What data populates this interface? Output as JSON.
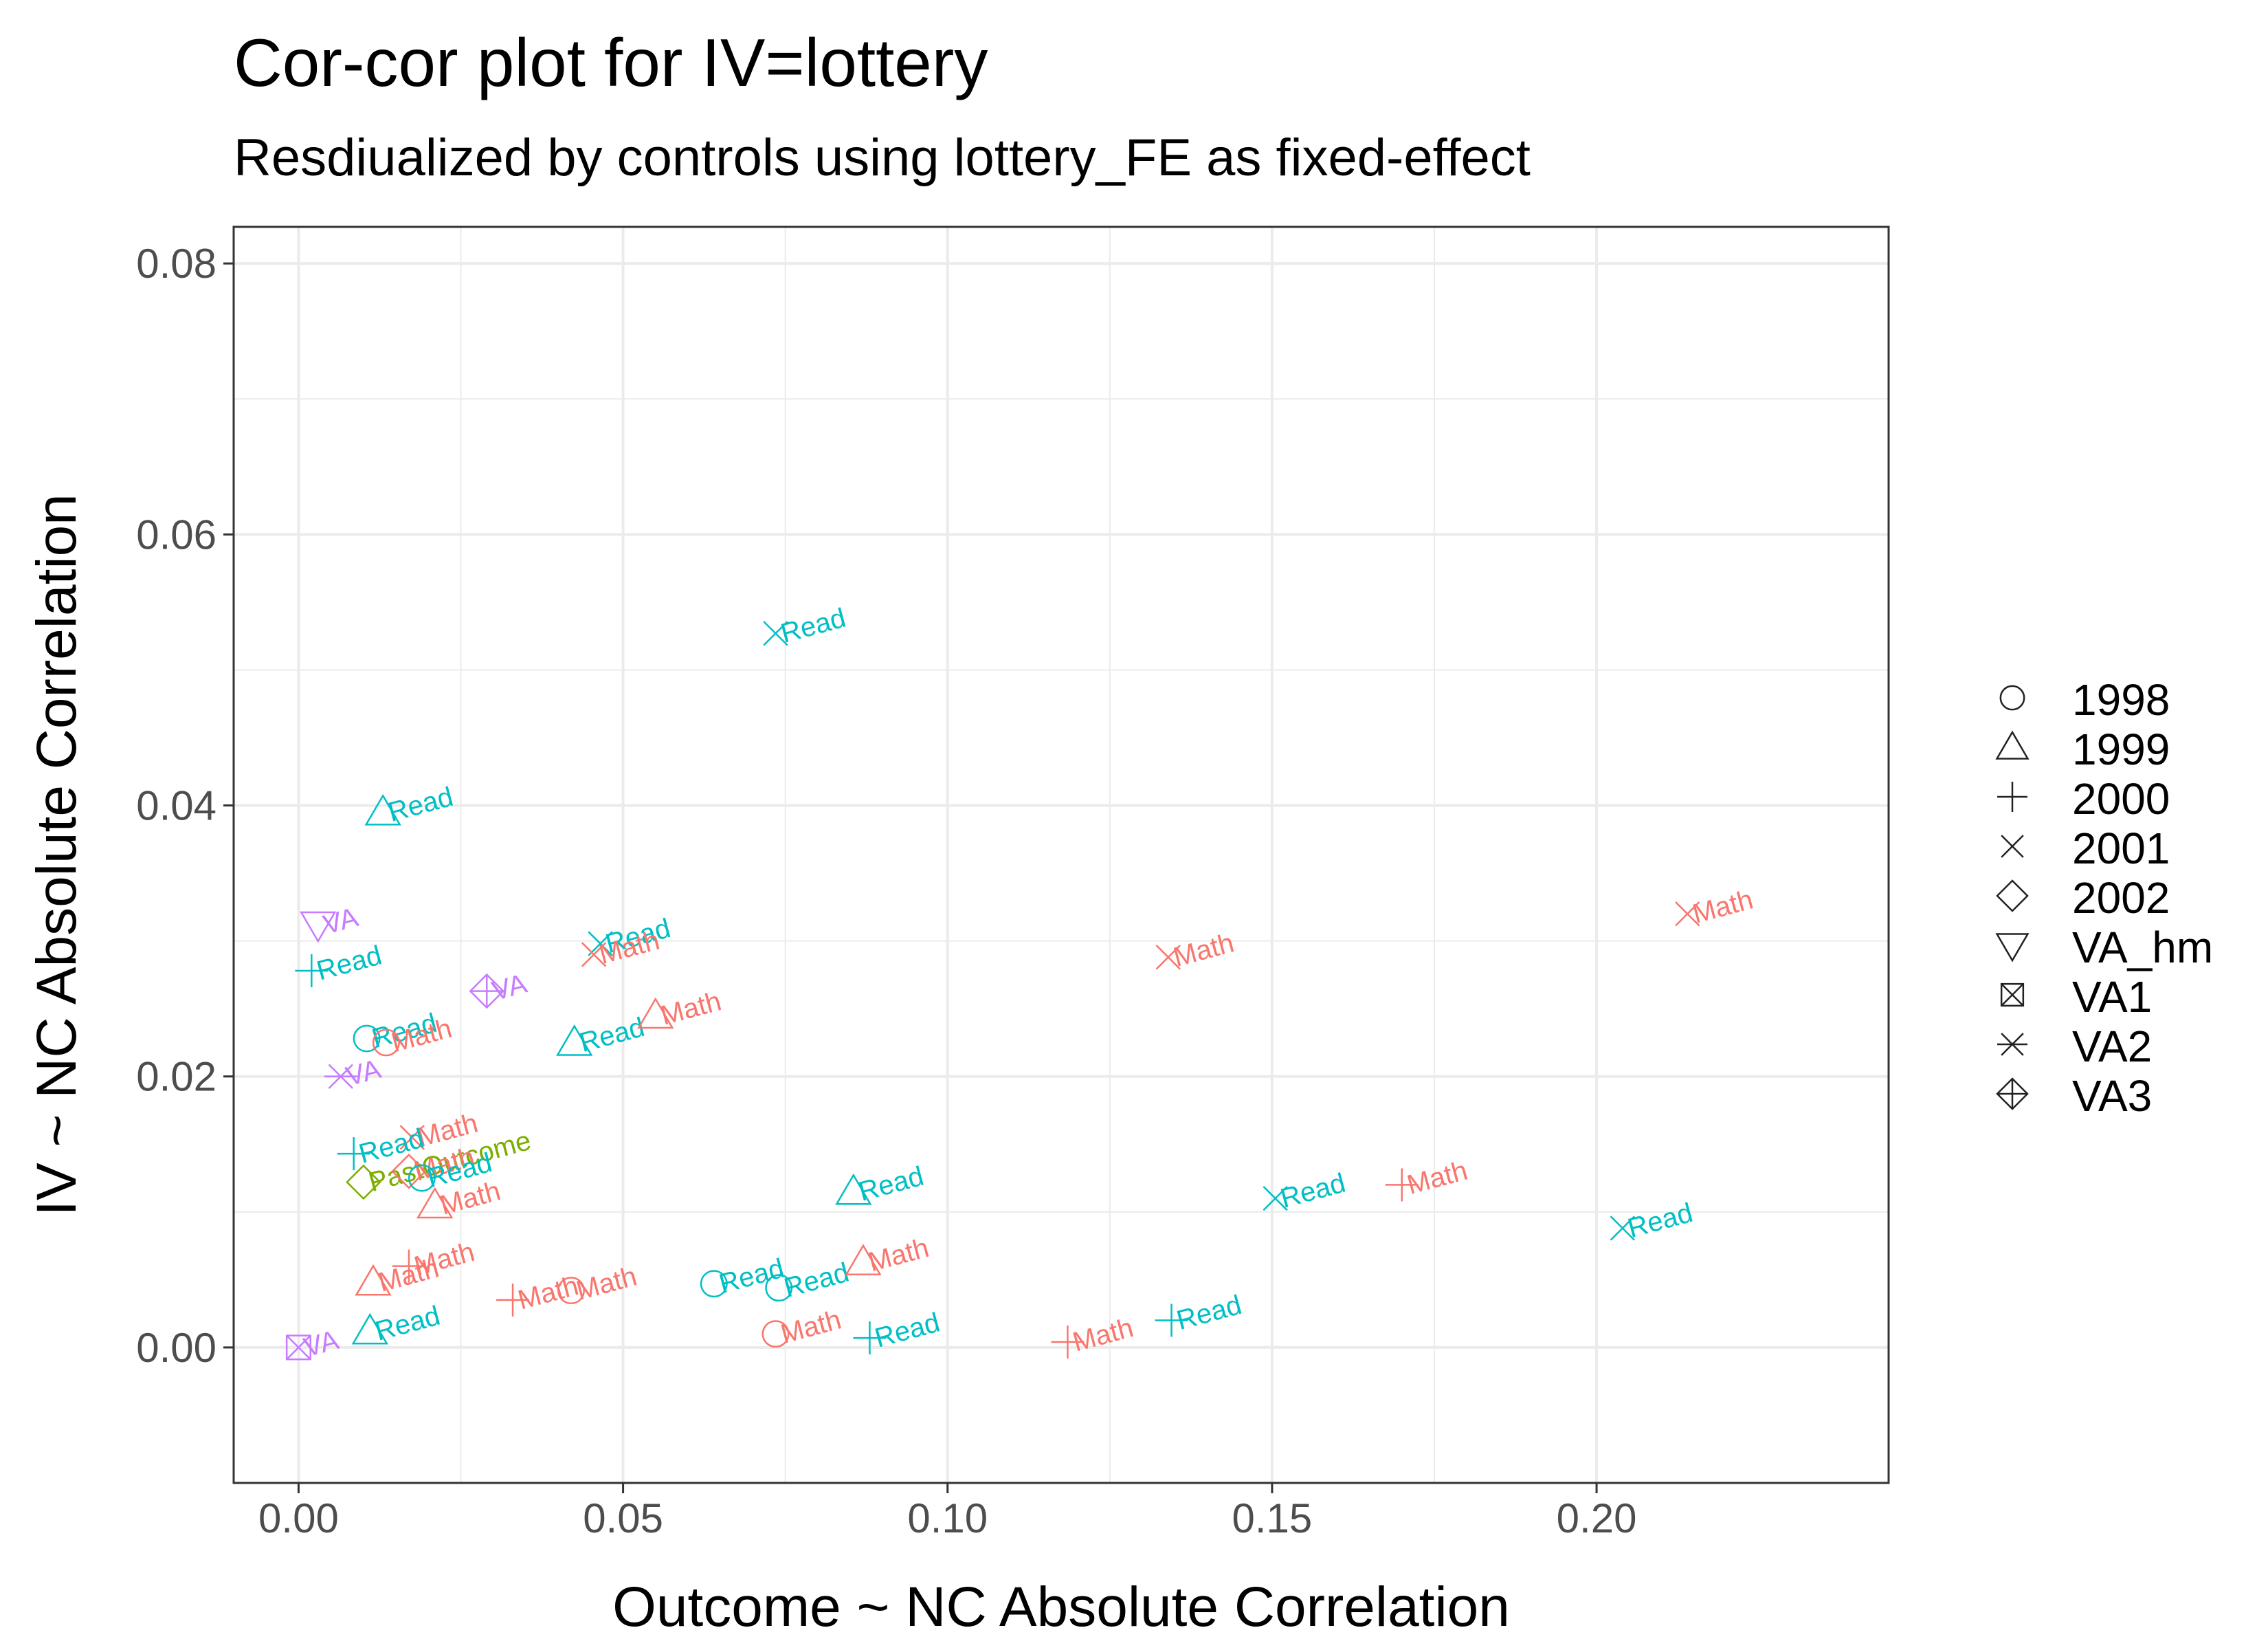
{
  "chart_data": {
    "type": "scatter",
    "title": "Cor-cor plot for IV=lottery",
    "subtitle": "Resdiualized by controls using lottery_FE as fixed-effect",
    "xlabel": "Outcome ~ NC Absolute Correlation",
    "ylabel": "IV ~ NC Absolute Correlation",
    "xlim": [
      -0.01,
      0.245
    ],
    "ylim": [
      -0.01,
      0.0827
    ],
    "xticks": [
      0.0,
      0.05,
      0.1,
      0.15,
      0.2
    ],
    "xtick_labels": [
      "0.00",
      "0.05",
      "0.10",
      "0.15",
      "0.20"
    ],
    "yticks": [
      0.0,
      0.02,
      0.04,
      0.06,
      0.08
    ],
    "ytick_labels": [
      "0.00",
      "0.02",
      "0.04",
      "0.06",
      "0.08"
    ],
    "grid": true,
    "legend_position": "right",
    "legend": [
      {
        "label": "1998",
        "shape": "circle"
      },
      {
        "label": "1999",
        "shape": "triangle-up"
      },
      {
        "label": "2000",
        "shape": "plus"
      },
      {
        "label": "2001",
        "shape": "cross"
      },
      {
        "label": "2002",
        "shape": "diamond"
      },
      {
        "label": "VA_hm",
        "shape": "triangle-down"
      },
      {
        "label": "VA1",
        "shape": "square-cross"
      },
      {
        "label": "VA2",
        "shape": "asterisk"
      },
      {
        "label": "VA3",
        "shape": "diamond-plus"
      }
    ],
    "colors": {
      "Math": "#F8766D",
      "Read": "#00BFC4",
      "VA": "#C77CFF",
      "PastOutcome": "#7CAE00"
    },
    "points": [
      {
        "x": 0.0735,
        "y": 0.0527,
        "shape": "cross",
        "label": "Read",
        "group": "Read"
      },
      {
        "x": 0.013,
        "y": 0.0395,
        "shape": "triangle-up",
        "label": "Read",
        "group": "Read"
      },
      {
        "x": 0.003,
        "y": 0.0312,
        "shape": "triangle-down",
        "label": "VA",
        "group": "VA"
      },
      {
        "x": 0.002,
        "y": 0.0278,
        "shape": "plus",
        "label": "Read",
        "group": "Read"
      },
      {
        "x": 0.0465,
        "y": 0.0298,
        "shape": "cross",
        "label": "Read",
        "group": "Read"
      },
      {
        "x": 0.0455,
        "y": 0.029,
        "shape": "cross",
        "label": "Math",
        "group": "Math"
      },
      {
        "x": 0.029,
        "y": 0.0263,
        "shape": "diamond-plus",
        "label": "VA",
        "group": "VA"
      },
      {
        "x": 0.0105,
        "y": 0.0228,
        "shape": "circle",
        "label": "Read",
        "group": "Read"
      },
      {
        "x": 0.0135,
        "y": 0.0225,
        "shape": "circle",
        "label": "Math",
        "group": "Math"
      },
      {
        "x": 0.0425,
        "y": 0.0225,
        "shape": "triangle-up",
        "label": "Read",
        "group": "Read"
      },
      {
        "x": 0.055,
        "y": 0.0245,
        "shape": "triangle-up",
        "label": "Math",
        "group": "Math"
      },
      {
        "x": 0.134,
        "y": 0.0288,
        "shape": "cross",
        "label": "Math",
        "group": "Math"
      },
      {
        "x": 0.214,
        "y": 0.032,
        "shape": "cross",
        "label": "Math",
        "group": "Math"
      },
      {
        "x": 0.0065,
        "y": 0.02,
        "shape": "asterisk",
        "label": "VA",
        "group": "VA"
      },
      {
        "x": 0.0175,
        "y": 0.0155,
        "shape": "cross",
        "label": "Math",
        "group": "Math"
      },
      {
        "x": 0.0085,
        "y": 0.0143,
        "shape": "plus",
        "label": "Read",
        "group": "Read"
      },
      {
        "x": 0.01,
        "y": 0.0122,
        "shape": "diamond",
        "label": "PastOutcome",
        "group": "PastOutcome"
      },
      {
        "x": 0.017,
        "y": 0.013,
        "shape": "diamond",
        "label": "Math",
        "group": "Math"
      },
      {
        "x": 0.019,
        "y": 0.0125,
        "shape": "circle",
        "label": "Read",
        "group": "Read"
      },
      {
        "x": 0.021,
        "y": 0.0105,
        "shape": "triangle-up",
        "label": "Math",
        "group": "Math"
      },
      {
        "x": 0.0855,
        "y": 0.0115,
        "shape": "triangle-up",
        "label": "Read",
        "group": "Read"
      },
      {
        "x": 0.1505,
        "y": 0.011,
        "shape": "cross",
        "label": "Read",
        "group": "Read"
      },
      {
        "x": 0.17,
        "y": 0.012,
        "shape": "plus",
        "label": "Math",
        "group": "Math"
      },
      {
        "x": 0.204,
        "y": 0.0088,
        "shape": "cross",
        "label": "Read",
        "group": "Read"
      },
      {
        "x": 0.017,
        "y": 0.006,
        "shape": "plus",
        "label": "Math",
        "group": "Math"
      },
      {
        "x": 0.0115,
        "y": 0.0048,
        "shape": "triangle-up",
        "label": "Math",
        "group": "Math"
      },
      {
        "x": 0.033,
        "y": 0.0035,
        "shape": "plus",
        "label": "Math",
        "group": "Math"
      },
      {
        "x": 0.042,
        "y": 0.0042,
        "shape": "circle",
        "label": "Math",
        "group": "Math"
      },
      {
        "x": 0.064,
        "y": 0.0047,
        "shape": "circle",
        "label": "Read",
        "group": "Read"
      },
      {
        "x": 0.074,
        "y": 0.0044,
        "shape": "circle",
        "label": "Read",
        "group": "Read"
      },
      {
        "x": 0.087,
        "y": 0.0063,
        "shape": "triangle-up",
        "label": "Math",
        "group": "Math"
      },
      {
        "x": 0.011,
        "y": 0.0012,
        "shape": "triangle-up",
        "label": "Read",
        "group": "Read"
      },
      {
        "x": 0.0,
        "y": 0.0,
        "shape": "square-cross",
        "label": "VA",
        "group": "VA"
      },
      {
        "x": 0.0735,
        "y": 0.001,
        "shape": "circle",
        "label": "Math",
        "group": "Math"
      },
      {
        "x": 0.088,
        "y": 0.0007,
        "shape": "plus",
        "label": "Read",
        "group": "Read"
      },
      {
        "x": 0.1185,
        "y": 0.0004,
        "shape": "plus",
        "label": "Math",
        "group": "Math"
      },
      {
        "x": 0.1345,
        "y": 0.002,
        "shape": "plus",
        "label": "Read",
        "group": "Read"
      }
    ]
  }
}
